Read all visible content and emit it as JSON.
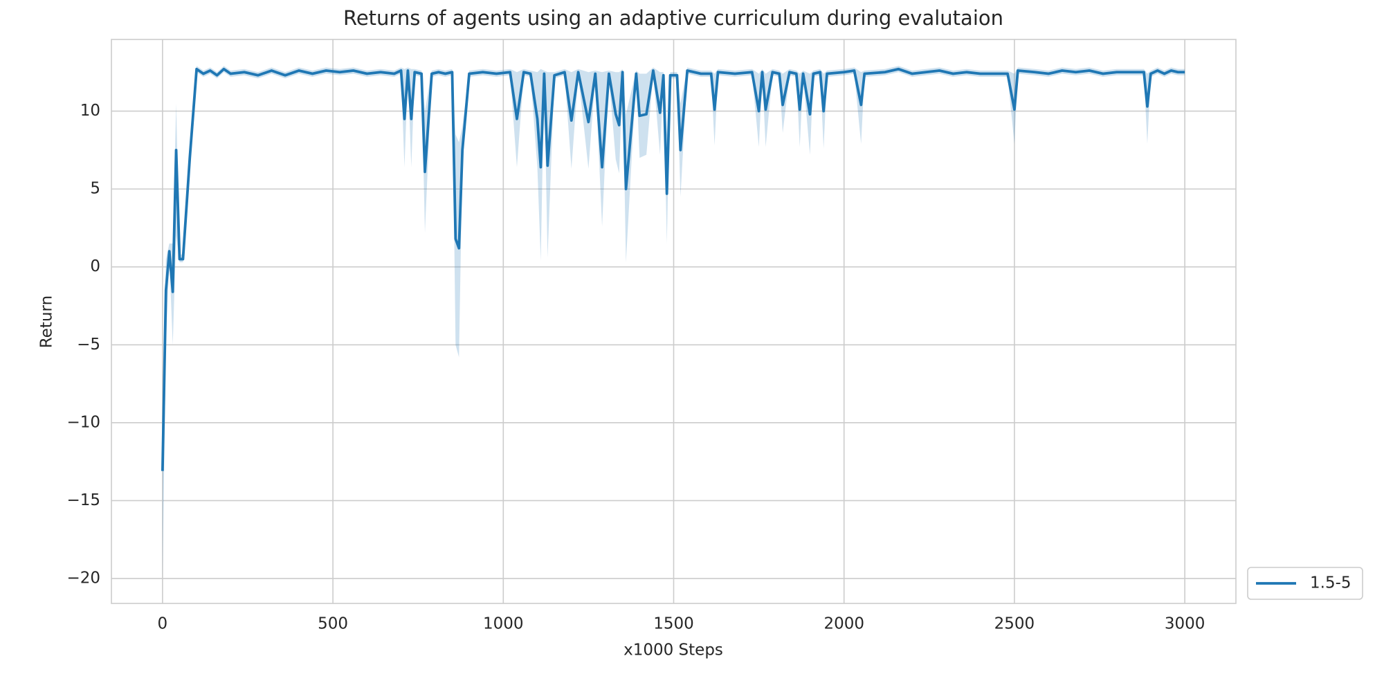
{
  "chart_data": {
    "type": "line",
    "title": "Returns of agents using an adaptive curriculum during evalutaion",
    "xlabel": "x1000 Steps",
    "ylabel": "Return",
    "x": [
      0,
      10,
      20,
      30,
      40,
      50,
      60,
      80,
      100,
      120,
      140,
      160,
      180,
      200,
      240,
      280,
      320,
      360,
      400,
      440,
      480,
      520,
      560,
      600,
      640,
      680,
      700,
      710,
      720,
      730,
      740,
      760,
      770,
      790,
      810,
      830,
      850,
      860,
      870,
      880,
      900,
      940,
      980,
      1020,
      1040,
      1060,
      1080,
      1100,
      1110,
      1120,
      1130,
      1150,
      1180,
      1200,
      1220,
      1250,
      1270,
      1290,
      1310,
      1330,
      1340,
      1350,
      1360,
      1390,
      1400,
      1420,
      1440,
      1460,
      1470,
      1480,
      1490,
      1510,
      1520,
      1540,
      1580,
      1610,
      1620,
      1630,
      1680,
      1730,
      1750,
      1760,
      1770,
      1790,
      1810,
      1820,
      1840,
      1860,
      1870,
      1880,
      1900,
      1910,
      1930,
      1940,
      1950,
      2000,
      2030,
      2050,
      2060,
      2120,
      2160,
      2200,
      2240,
      2280,
      2320,
      2360,
      2400,
      2440,
      2480,
      2500,
      2510,
      2560,
      2600,
      2640,
      2680,
      2720,
      2760,
      2800,
      2840,
      2880,
      2890,
      2900,
      2920,
      2940,
      2960,
      2980,
      3000
    ],
    "series": [
      {
        "name": "1.5-5",
        "color": "#1f77b4",
        "values": [
          -13.1,
          -1.5,
          1.0,
          -1.6,
          7.5,
          0.5,
          0.5,
          7.0,
          12.7,
          12.4,
          12.6,
          12.3,
          12.7,
          12.4,
          12.5,
          12.3,
          12.6,
          12.3,
          12.6,
          12.4,
          12.6,
          12.5,
          12.6,
          12.4,
          12.5,
          12.4,
          12.6,
          9.5,
          12.6,
          9.5,
          12.5,
          12.4,
          6.1,
          12.4,
          12.5,
          12.4,
          12.5,
          1.8,
          1.2,
          7.5,
          12.4,
          12.5,
          12.4,
          12.5,
          9.5,
          12.5,
          12.4,
          9.5,
          6.4,
          12.4,
          6.5,
          12.3,
          12.5,
          9.4,
          12.5,
          9.3,
          12.4,
          6.4,
          12.4,
          9.8,
          9.1,
          12.5,
          5.0,
          12.4,
          9.7,
          9.8,
          12.6,
          9.9,
          12.3,
          4.7,
          12.3,
          12.3,
          7.5,
          12.6,
          12.4,
          12.4,
          10.1,
          12.5,
          12.4,
          12.5,
          10.0,
          12.5,
          10.1,
          12.5,
          12.4,
          10.4,
          12.5,
          12.4,
          10.1,
          12.4,
          9.8,
          12.4,
          12.5,
          10.0,
          12.4,
          12.5,
          12.6,
          10.4,
          12.4,
          12.5,
          12.7,
          12.4,
          12.5,
          12.6,
          12.4,
          12.5,
          12.4,
          12.4,
          12.4,
          10.1,
          12.6,
          12.5,
          12.4,
          12.6,
          12.5,
          12.6,
          12.4,
          12.5,
          12.5,
          12.5,
          10.3,
          12.4,
          12.6,
          12.4,
          12.6,
          12.5,
          12.5
        ],
        "lower": [
          -20,
          -5,
          0.5,
          -5,
          2,
          0.3,
          0.3,
          6,
          12.5,
          12.2,
          12.4,
          12.1,
          12.5,
          12.2,
          12.3,
          12.1,
          12.4,
          12.1,
          12.4,
          12.2,
          12.4,
          12.3,
          12.4,
          12.2,
          12.3,
          12.2,
          12.4,
          6.4,
          12.4,
          6.4,
          12.3,
          12.2,
          2.2,
          12.2,
          12.3,
          12.2,
          12.3,
          -5,
          -5.8,
          7,
          12.2,
          12.3,
          12.2,
          12.3,
          6.4,
          12.3,
          12.2,
          6.4,
          0.4,
          12.2,
          0.6,
          12.1,
          12.3,
          6.3,
          12.3,
          6.3,
          12.2,
          2.6,
          12.2,
          6.9,
          6.0,
          12.3,
          0.3,
          12.2,
          7.0,
          7.2,
          12.4,
          7.2,
          12.1,
          1.5,
          12.1,
          12.1,
          4.5,
          12.4,
          12.2,
          12.2,
          7.8,
          12.3,
          12.2,
          12.3,
          7.7,
          12.3,
          7.7,
          12.3,
          12.2,
          8.6,
          12.3,
          12.2,
          7.7,
          12.2,
          7.2,
          12.2,
          12.3,
          7.6,
          12.2,
          12.3,
          12.4,
          7.9,
          12.2,
          12.3,
          12.5,
          12.2,
          12.3,
          12.4,
          12.2,
          12.3,
          12.2,
          12.2,
          12.2,
          7.9,
          12.4,
          12.3,
          12.2,
          12.4,
          12.3,
          12.4,
          12.2,
          12.3,
          12.3,
          12.3,
          7.9,
          12.2,
          12.4,
          12.2,
          12.4,
          12.3,
          12.3
        ],
        "upper": [
          -9,
          0.5,
          1.5,
          1.5,
          10.5,
          0.8,
          0.8,
          8,
          12.9,
          12.6,
          12.8,
          12.5,
          12.9,
          12.6,
          12.7,
          12.5,
          12.8,
          12.5,
          12.8,
          12.6,
          12.8,
          12.7,
          12.8,
          12.6,
          12.7,
          12.6,
          12.8,
          12.7,
          12.8,
          12.7,
          12.7,
          12.6,
          10,
          12.6,
          12.7,
          12.6,
          12.7,
          8.5,
          8,
          9,
          12.6,
          12.7,
          12.6,
          12.7,
          12.5,
          12.7,
          12.6,
          12.5,
          12.7,
          12.6,
          12.5,
          12.5,
          12.7,
          12.5,
          12.7,
          12.5,
          12.6,
          12.5,
          12.6,
          12.5,
          12.5,
          12.7,
          9.8,
          12.6,
          12.4,
          12.4,
          12.8,
          12.5,
          12.5,
          8.5,
          12.5,
          12.5,
          10.5,
          12.8,
          12.6,
          12.6,
          12.4,
          12.7,
          12.6,
          12.7,
          12.4,
          12.7,
          12.4,
          12.7,
          12.6,
          12.4,
          12.7,
          12.6,
          12.4,
          12.6,
          12.4,
          12.6,
          12.7,
          12.4,
          12.6,
          12.7,
          12.8,
          12.5,
          12.6,
          12.7,
          12.9,
          12.6,
          12.7,
          12.8,
          12.6,
          12.7,
          12.6,
          12.6,
          12.6,
          12.4,
          12.8,
          12.7,
          12.6,
          12.8,
          12.7,
          12.8,
          12.6,
          12.7,
          12.7,
          12.7,
          12.4,
          12.6,
          12.8,
          12.6,
          12.8,
          12.7,
          12.7
        ]
      }
    ],
    "xlim": [
      -150,
      3150
    ],
    "ylim": [
      -21.6,
      14.6
    ],
    "xticks": [
      0,
      500,
      1000,
      1500,
      2000,
      2500,
      3000
    ],
    "yticks": [
      {
        "value": -20,
        "label": "−20"
      },
      {
        "value": -15,
        "label": "−15"
      },
      {
        "value": -10,
        "label": "−10"
      },
      {
        "value": -5,
        "label": "−5"
      },
      0,
      5,
      10
    ],
    "grid": true,
    "legend": "outside-lower-right"
  }
}
